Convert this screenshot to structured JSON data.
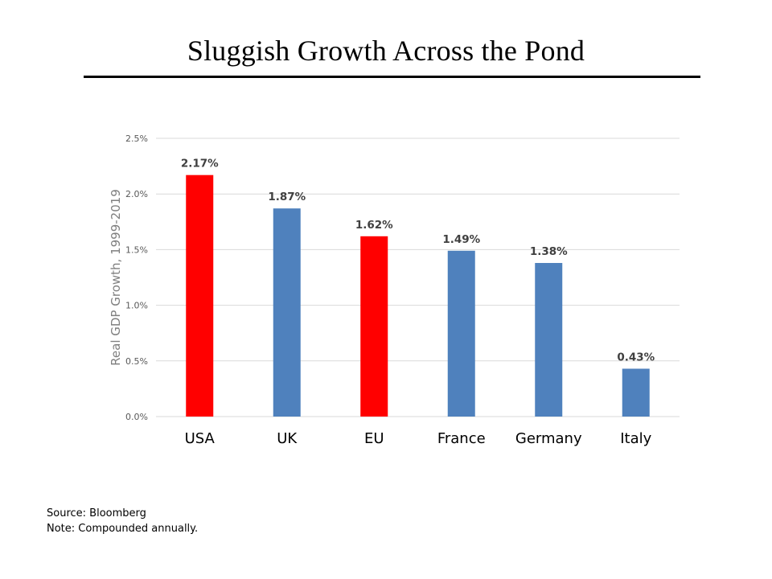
{
  "slide": {
    "title": "Sluggish  Growth Across  the Pond"
  },
  "chart_data": {
    "type": "bar",
    "title": "",
    "xlabel": "",
    "ylabel": "Real GDP Growth, 1999-2019",
    "categories": [
      "USA",
      "UK",
      "EU",
      "France",
      "Germany",
      "Italy"
    ],
    "values": [
      2.17,
      1.87,
      1.62,
      1.49,
      1.38,
      0.43
    ],
    "data_labels": [
      "2.17%",
      "1.87%",
      "1.62%",
      "1.49%",
      "1.38%",
      "0.43%"
    ],
    "bar_colors": [
      "#ff0000",
      "#4f81bd",
      "#ff0000",
      "#4f81bd",
      "#4f81bd",
      "#4f81bd"
    ],
    "ylim": [
      0,
      2.5
    ],
    "yticks": [
      0,
      0.5,
      1.0,
      1.5,
      2.0,
      2.5
    ],
    "ytick_labels": [
      "0.0%",
      "0.5%",
      "1.0%",
      "1.5%",
      "2.0%",
      "2.5%"
    ],
    "grid": true,
    "legend": "none"
  },
  "footnotes": {
    "source": "Source: Bloomberg",
    "note": "Note: Compounded annually."
  }
}
